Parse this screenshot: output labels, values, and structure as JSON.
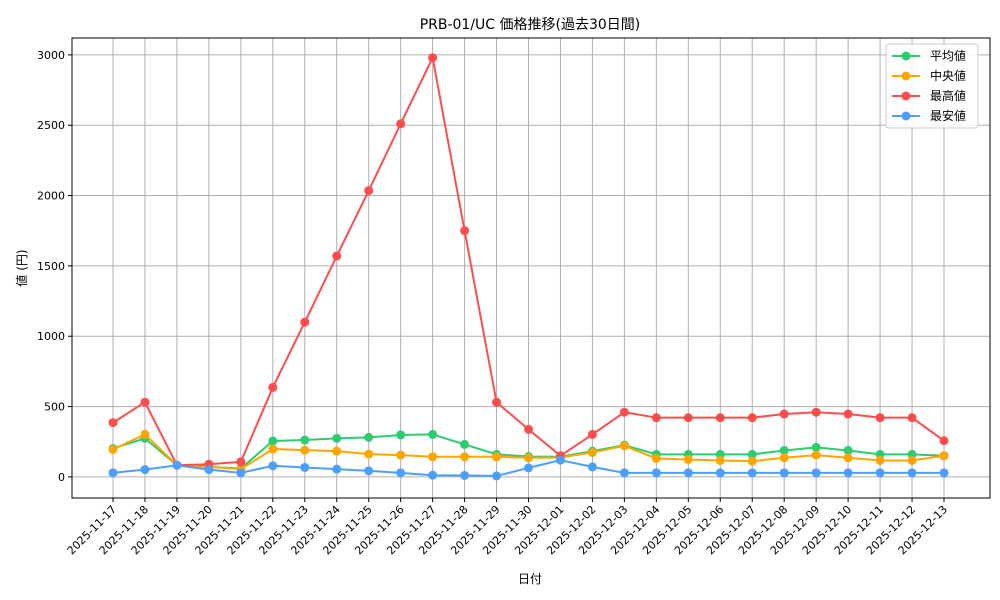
{
  "chart_data": {
    "type": "line",
    "title": "PRB-01/UC 価格推移(過去30日間)",
    "xlabel": "日付",
    "ylabel": "値 (円)",
    "ylim": [
      -150,
      3120
    ],
    "yticks": [
      0,
      500,
      1000,
      1500,
      2000,
      2500,
      3000
    ],
    "grid": true,
    "legend_position": "top-right",
    "categories": [
      "2025-11-17",
      "2025-11-18",
      "2025-11-19",
      "2025-11-20",
      "2025-11-21",
      "2025-11-22",
      "2025-11-23",
      "2025-11-24",
      "2025-11-25",
      "2025-11-26",
      "2025-11-27",
      "2025-11-28",
      "2025-11-29",
      "2025-11-30",
      "2025-12-01",
      "2025-12-02",
      "2025-12-03",
      "2025-12-04",
      "2025-12-05",
      "2025-12-06",
      "2025-12-07",
      "2025-12-08",
      "2025-12-09",
      "2025-12-10",
      "2025-12-11",
      "2025-12-12",
      "2025-12-13"
    ],
    "series": [
      {
        "name": "平均値",
        "color": "#2ecc71",
        "values": [
          202,
          274,
          83,
          71,
          60,
          255,
          262,
          274,
          281,
          298,
          302,
          231,
          160,
          145,
          143,
          183,
          226,
          160,
          160,
          160,
          160,
          188,
          210,
          188,
          160,
          160,
          150
        ]
      },
      {
        "name": "中央値",
        "color": "#ffa500",
        "values": [
          195,
          302,
          83,
          71,
          55,
          198,
          190,
          183,
          162,
          155,
          143,
          143,
          143,
          136,
          138,
          174,
          221,
          131,
          124,
          117,
          112,
          136,
          155,
          136,
          117,
          117,
          150
        ]
      },
      {
        "name": "最高値",
        "color": "#ff4d4d",
        "values": [
          386,
          531,
          83,
          90,
          107,
          636,
          1100,
          1570,
          2035,
          2510,
          2980,
          1750,
          531,
          338,
          150,
          302,
          460,
          421,
          421,
          421,
          421,
          447,
          460,
          447,
          421,
          421,
          257
        ]
      },
      {
        "name": "最安値",
        "color": "#4d9fff",
        "values": [
          29,
          52,
          83,
          52,
          29,
          79,
          67,
          55,
          43,
          29,
          12,
          10,
          7,
          64,
          119,
          71,
          29,
          29,
          29,
          29,
          29,
          29,
          29,
          29,
          29,
          29,
          29
        ]
      }
    ]
  }
}
